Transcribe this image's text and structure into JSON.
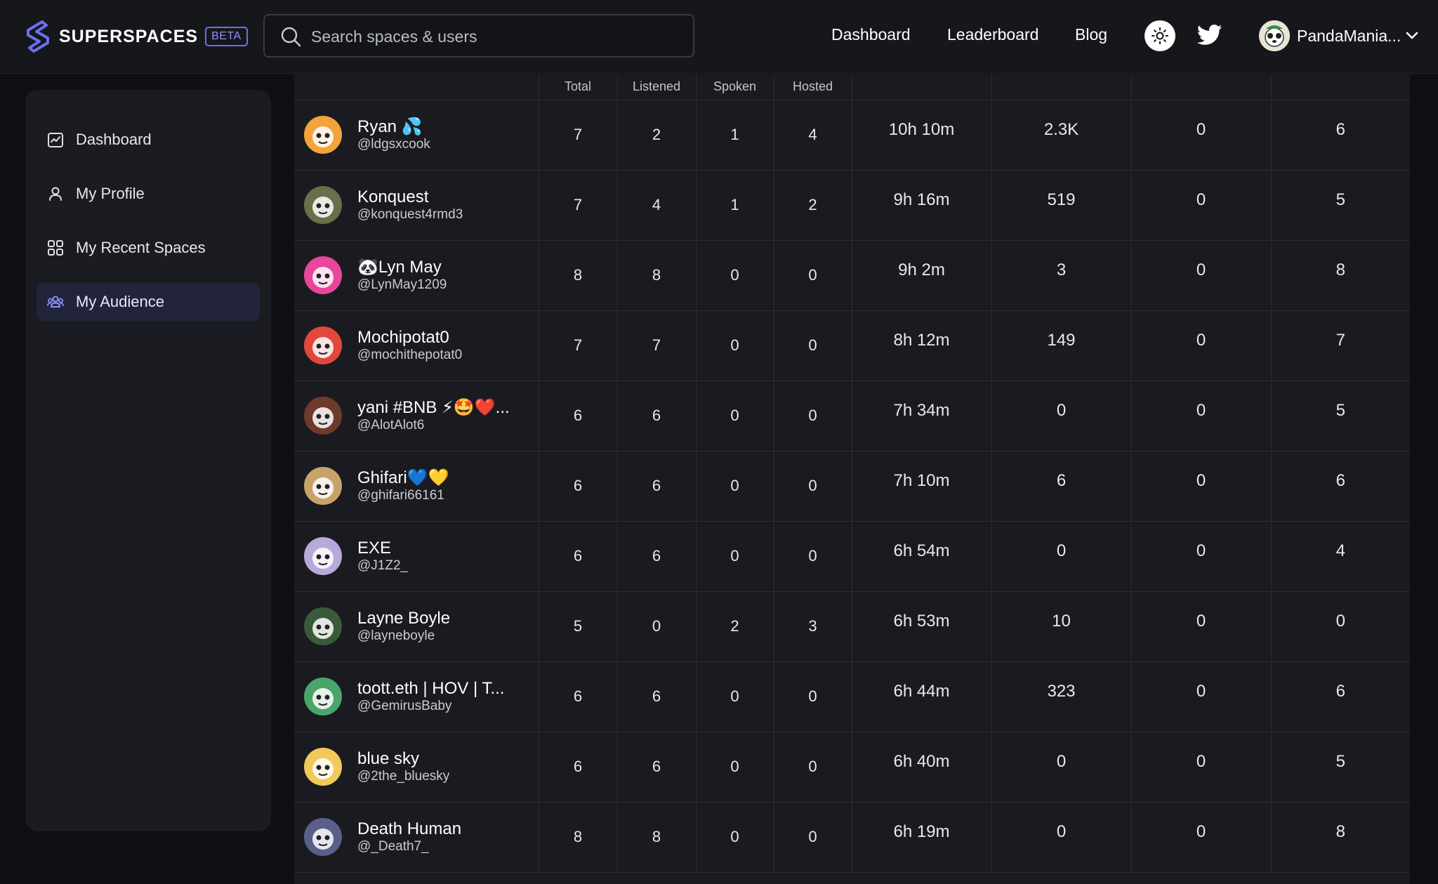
{
  "brand": {
    "name": "SUPERSPACES",
    "badge": "BETA",
    "accent": "#6b6ff0"
  },
  "search": {
    "placeholder": "Search spaces & users"
  },
  "nav": {
    "links": [
      "Dashboard",
      "Leaderboard",
      "Blog"
    ]
  },
  "header_icons": [
    "sun-icon",
    "twitter-icon"
  ],
  "user": {
    "name": "PandaMania..."
  },
  "sidebar": {
    "items": [
      {
        "label": "Dashboard",
        "icon": "chart-icon",
        "active": false
      },
      {
        "label": "My Profile",
        "icon": "user-icon",
        "active": false
      },
      {
        "label": "My Recent Spaces",
        "icon": "grid-icon",
        "active": false
      },
      {
        "label": "My Audience",
        "icon": "people-icon",
        "active": true
      }
    ]
  },
  "table": {
    "headers": [
      "",
      "Total",
      "Listened",
      "Spoken",
      "Hosted",
      "",
      "",
      "",
      ""
    ],
    "rows": [
      {
        "name": "Ryan 💦",
        "handle": "@ldgsxcook",
        "total": "7",
        "listened": "2",
        "spoken": "1",
        "hosted": "4",
        "time": "10h 10m",
        "c2": "2.3K",
        "c3": "0",
        "c4": "6",
        "avatar_color": "#f2a33a"
      },
      {
        "name": "Konquest",
        "handle": "@konquest4rmd3",
        "total": "7",
        "listened": "4",
        "spoken": "1",
        "hosted": "2",
        "time": "9h 16m",
        "c2": "519",
        "c3": "0",
        "c4": "5",
        "avatar_color": "#6b6e4a"
      },
      {
        "name": "🐼Lyn May",
        "handle": "@LynMay1209",
        "total": "8",
        "listened": "8",
        "spoken": "0",
        "hosted": "0",
        "time": "9h 2m",
        "c2": "3",
        "c3": "0",
        "c4": "8",
        "avatar_color": "#e8469a"
      },
      {
        "name": "Mochipotat0",
        "handle": "@mochithepotat0",
        "total": "7",
        "listened": "7",
        "spoken": "0",
        "hosted": "0",
        "time": "8h 12m",
        "c2": "149",
        "c3": "0",
        "c4": "7",
        "avatar_color": "#e0483c"
      },
      {
        "name": "yani #BNB ⚡🤩❤️...",
        "handle": "@AlotAlot6",
        "total": "6",
        "listened": "6",
        "spoken": "0",
        "hosted": "0",
        "time": "7h 34m",
        "c2": "0",
        "c3": "0",
        "c4": "5",
        "avatar_color": "#6e3a2c"
      },
      {
        "name": "Ghifari💙💛",
        "handle": "@ghifari66161",
        "total": "6",
        "listened": "6",
        "spoken": "0",
        "hosted": "0",
        "time": "7h 10m",
        "c2": "6",
        "c3": "0",
        "c4": "6",
        "avatar_color": "#c9a26a"
      },
      {
        "name": "EXE",
        "handle": "@J1Z2_",
        "total": "6",
        "listened": "6",
        "spoken": "0",
        "hosted": "0",
        "time": "6h 54m",
        "c2": "0",
        "c3": "0",
        "c4": "4",
        "avatar_color": "#b9a9d8"
      },
      {
        "name": "Layne Boyle",
        "handle": "@layneboyle",
        "total": "5",
        "listened": "0",
        "spoken": "2",
        "hosted": "3",
        "time": "6h 53m",
        "c2": "10",
        "c3": "0",
        "c4": "0",
        "avatar_color": "#3b5a3a"
      },
      {
        "name": "toott.eth | HOV | T...",
        "handle": "@GemirusBaby",
        "total": "6",
        "listened": "6",
        "spoken": "0",
        "hosted": "0",
        "time": "6h 44m",
        "c2": "323",
        "c3": "0",
        "c4": "6",
        "avatar_color": "#4aa56b"
      },
      {
        "name": "blue sky",
        "handle": "@2the_bluesky",
        "total": "6",
        "listened": "6",
        "spoken": "0",
        "hosted": "0",
        "time": "6h 40m",
        "c2": "0",
        "c3": "0",
        "c4": "5",
        "avatar_color": "#f0c95a"
      },
      {
        "name": "Death Human",
        "handle": "@_Death7_",
        "total": "8",
        "listened": "8",
        "spoken": "0",
        "hosted": "0",
        "time": "6h 19m",
        "c2": "0",
        "c3": "0",
        "c4": "8",
        "avatar_color": "#5a5f8a"
      }
    ]
  }
}
